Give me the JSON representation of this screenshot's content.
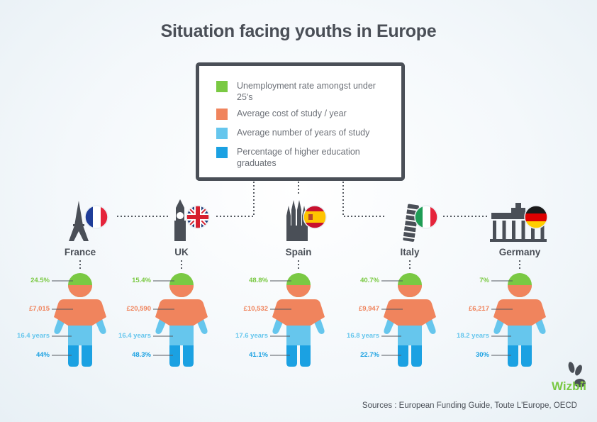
{
  "title": "Situation facing youths in Europe",
  "legend": [
    {
      "label": "Unemployment rate amongst under 25's",
      "color": "#7ac943"
    },
    {
      "label": "Average cost of study / year",
      "color": "#f0845d"
    },
    {
      "label": "Average number of years of study",
      "color": "#66c6ed"
    },
    {
      "label": "Percentage of higher education graduates",
      "color": "#1ba1e2"
    }
  ],
  "chart_data": {
    "type": "table",
    "title": "Situation facing youths in Europe",
    "columns": [
      "Unemployment rate amongst under 25's",
      "Average cost of study / year",
      "Average number of years of study",
      "Percentage of higher education graduates"
    ],
    "rows": [
      {
        "country": "France",
        "unemployment": "24.5%",
        "cost": "£7,015",
        "years": "16.4 years",
        "graduates": "44%"
      },
      {
        "country": "UK",
        "unemployment": "15.4%",
        "cost": "£20,590",
        "years": "16.4 years",
        "graduates": "48.3%"
      },
      {
        "country": "Spain",
        "unemployment": "48.8%",
        "cost": "£10,532",
        "years": "17.6 years",
        "graduates": "41.1%"
      },
      {
        "country": "Italy",
        "unemployment": "40.7%",
        "cost": "£9,947",
        "years": "16.8 years",
        "graduates": "22.7%"
      },
      {
        "country": "Germany",
        "unemployment": "7%",
        "cost": "£6,217",
        "years": "18.2 years",
        "graduates": "30%"
      }
    ],
    "colors": {
      "unemployment": "#7ac943",
      "cost": "#f0845d",
      "years": "#66c6ed",
      "graduates": "#1ba1e2"
    }
  },
  "logo": "Wizbii",
  "sources": "Sources : European Funding Guide, Toute L'Europe, OECD"
}
